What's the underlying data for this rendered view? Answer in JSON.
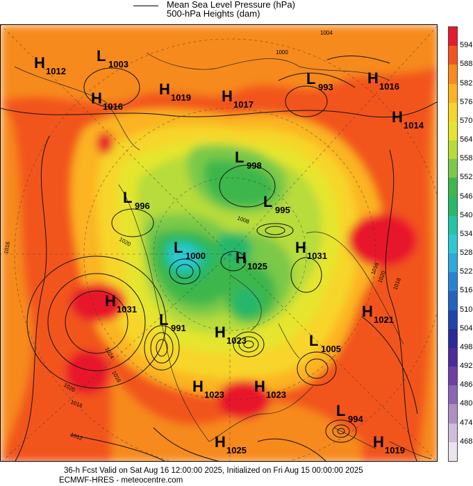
{
  "legend": {
    "line_label": "Mean Sea Level Pressure (hPa)",
    "fill_label": "500-hPa Heights (dam)"
  },
  "colorbar": {
    "levels": [
      "594",
      "588",
      "582",
      "576",
      "570",
      "564",
      "558",
      "552",
      "546",
      "540",
      "534",
      "528",
      "522",
      "516",
      "510",
      "504",
      "498",
      "492",
      "486",
      "480",
      "474",
      "468"
    ],
    "colors": [
      "#e8192c",
      "#f2541d",
      "#f78a1c",
      "#fbb421",
      "#f7d529",
      "#e6e52d",
      "#b7dc3a",
      "#7bc94a",
      "#3db74b",
      "#28b86b",
      "#23c3a5",
      "#2cc9d4",
      "#2ea8df",
      "#2884d2",
      "#2262c1",
      "#1f44ad",
      "#2a2a9a",
      "#4b2a99",
      "#6d3fa5",
      "#8d64b5",
      "#ad8fc6",
      "#cfbddb",
      "#ece3f0"
    ]
  },
  "map": {
    "systems": [
      {
        "type": "H",
        "value": "1012"
      },
      {
        "type": "L",
        "value": "1003"
      },
      {
        "type": "H",
        "value": "1019"
      },
      {
        "type": "H",
        "value": "1017"
      },
      {
        "type": "L",
        "value": "993"
      },
      {
        "type": "H",
        "value": "1016"
      },
      {
        "type": "H",
        "value": "1016"
      },
      {
        "type": "H",
        "value": "1014"
      },
      {
        "type": "L",
        "value": "998"
      },
      {
        "type": "L",
        "value": "996"
      },
      {
        "type": "L",
        "value": "995"
      },
      {
        "type": "L",
        "value": "1000"
      },
      {
        "type": "H",
        "value": "1025"
      },
      {
        "type": "H",
        "value": "1031"
      },
      {
        "type": "H",
        "value": "1031"
      },
      {
        "type": "L",
        "value": "991"
      },
      {
        "type": "H",
        "value": "1023"
      },
      {
        "type": "H",
        "value": "1021"
      },
      {
        "type": "L",
        "value": "1005"
      },
      {
        "type": "H",
        "value": "1023"
      },
      {
        "type": "H",
        "value": "1023"
      },
      {
        "type": "L",
        "value": "994"
      },
      {
        "type": "H",
        "value": "1025"
      },
      {
        "type": "H",
        "value": "1019"
      }
    ],
    "isobar_labels": [
      "1004",
      "1000",
      "1008",
      "1016",
      "1016",
      "1020",
      "1024",
      "1020",
      "1016",
      "1012",
      "1016",
      "1020",
      "1016"
    ]
  },
  "footer": {
    "line1": "36-h Fcst Valid on Sat Aug 16 12:00:00 2025, Initialized on Fri Aug 15 00:00:00 2025",
    "line2": "ECMWF-HRES - meteocentre.com"
  }
}
